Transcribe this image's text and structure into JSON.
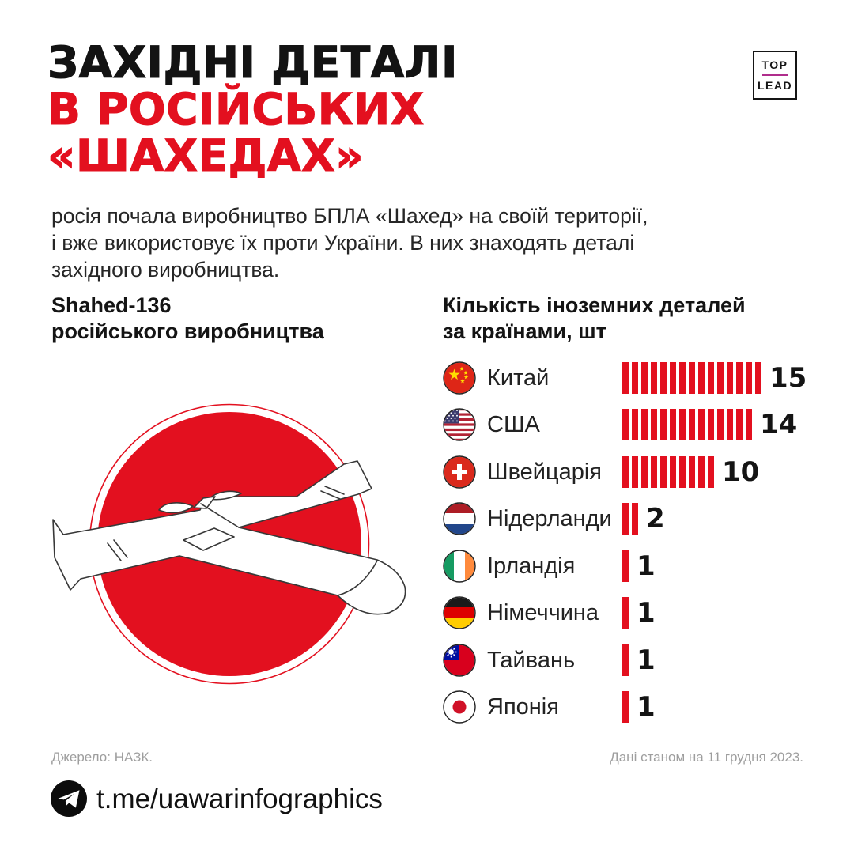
{
  "page": {
    "background": "#ffffff",
    "accent_red": "#e3101f",
    "brand_line_color": "#b02d8c"
  },
  "brand": {
    "top": "TOP",
    "lead": "LEAD"
  },
  "title": {
    "line1": "ЗАХІДНІ ДЕТАЛІ",
    "line2": "В РОСІЙСЬКИХ",
    "line3": "«ШАХЕДАХ»"
  },
  "intro": {
    "line1": "росія почала виробництво БПЛА «Шахед» на своїй території,",
    "line2": "і вже використовує їх проти України. В них знаходять деталі",
    "line3": "західного виробництва."
  },
  "left_section": {
    "heading_line1": "Shahed-136",
    "heading_line2": "російського виробництва",
    "illustration": "shahed-136-drone-on-red-circle"
  },
  "chart_heading": {
    "line1": "Кількість іноземних деталей",
    "line2": "за країнами, шт"
  },
  "chart_data": {
    "type": "bar",
    "title": "Кількість іноземних деталей за країнами, шт",
    "unit": "шт",
    "orientation": "horizontal-tally",
    "bar_color": "#e3101f",
    "legend_position": "none",
    "xlim": [
      0,
      15
    ],
    "categories": [
      "Китай",
      "США",
      "Швейцарія",
      "Нідерланди",
      "Ірландія",
      "Німеччина",
      "Тайвань",
      "Японія"
    ],
    "values": [
      15,
      14,
      10,
      2,
      1,
      1,
      1,
      1
    ],
    "flags": [
      "china-flag-icon",
      "usa-flag-icon",
      "switzerland-flag-icon",
      "netherlands-flag-icon",
      "ireland-flag-icon",
      "germany-flag-icon",
      "taiwan-flag-icon",
      "japan-flag-icon"
    ]
  },
  "footnotes": {
    "source": "Джерело: НАЗК.",
    "date": "Дані станом на 11 грудня 2023."
  },
  "footer": {
    "handle": "t.me/uawarinfographics",
    "icon": "telegram-icon"
  }
}
